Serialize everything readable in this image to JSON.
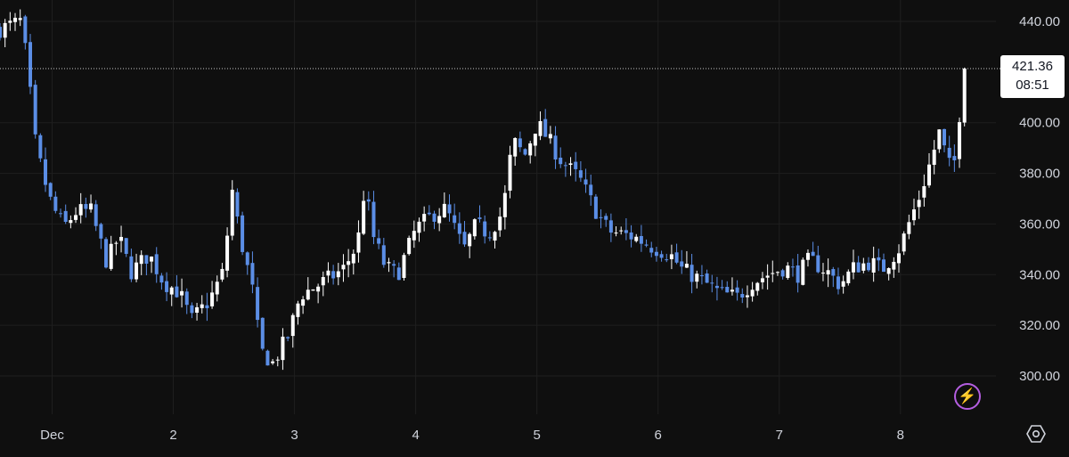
{
  "chart_data": {
    "type": "candlestick",
    "ylim": [
      285,
      445
    ],
    "y_ticks": [
      "440.00",
      "400.00",
      "380.00",
      "360.00",
      "340.00",
      "320.00",
      "300.00"
    ],
    "x_tick_labels": [
      "Dec",
      "2",
      "3",
      "4",
      "5",
      "6",
      "7",
      "8"
    ],
    "x_range_days": [
      0.57,
      8.7
    ],
    "colors": {
      "up": "#ffffff",
      "down": "#5b8ee6",
      "grid": "#1f1f1f",
      "crosshair": "#c8c8c8",
      "axis_text": "#d1d4dc"
    },
    "last_price": "421.36",
    "last_time": "08:51",
    "last_price_value": 421.36,
    "key_points": [
      [
        0.57,
        437
      ],
      [
        0.74,
        440
      ],
      [
        0.8,
        422
      ],
      [
        0.85,
        395
      ],
      [
        0.92,
        380
      ],
      [
        1.0,
        367
      ],
      [
        1.1,
        359
      ],
      [
        1.2,
        365
      ],
      [
        1.32,
        365
      ],
      [
        1.45,
        345
      ],
      [
        1.55,
        355
      ],
      [
        1.65,
        341
      ],
      [
        1.8,
        348
      ],
      [
        1.92,
        337
      ],
      [
        2.05,
        333
      ],
      [
        2.15,
        322
      ],
      [
        2.3,
        330
      ],
      [
        2.42,
        342
      ],
      [
        2.48,
        375
      ],
      [
        2.55,
        355
      ],
      [
        2.65,
        335
      ],
      [
        2.72,
        310
      ],
      [
        2.82,
        305
      ],
      [
        2.95,
        316
      ],
      [
        3.05,
        332
      ],
      [
        3.2,
        336
      ],
      [
        3.4,
        342
      ],
      [
        3.52,
        352
      ],
      [
        3.58,
        375
      ],
      [
        3.65,
        355
      ],
      [
        3.75,
        343
      ],
      [
        3.85,
        340
      ],
      [
        4.0,
        358
      ],
      [
        4.15,
        364
      ],
      [
        4.25,
        366
      ],
      [
        4.35,
        355
      ],
      [
        4.4,
        350
      ],
      [
        4.5,
        360
      ],
      [
        4.6,
        356
      ],
      [
        4.72,
        365
      ],
      [
        4.8,
        393
      ],
      [
        4.9,
        387
      ],
      [
        5.0,
        400
      ],
      [
        5.1,
        393
      ],
      [
        5.2,
        385
      ],
      [
        5.35,
        378
      ],
      [
        5.5,
        364
      ],
      [
        5.6,
        357
      ],
      [
        5.8,
        355
      ],
      [
        5.95,
        351
      ],
      [
        6.1,
        348
      ],
      [
        6.2,
        342
      ],
      [
        6.35,
        338
      ],
      [
        6.5,
        333
      ],
      [
        6.65,
        331
      ],
      [
        6.78,
        337
      ],
      [
        6.9,
        340
      ],
      [
        7.05,
        343
      ],
      [
        7.15,
        340
      ],
      [
        7.25,
        346
      ],
      [
        7.4,
        341
      ],
      [
        7.5,
        336
      ],
      [
        7.62,
        343
      ],
      [
        7.75,
        345
      ],
      [
        7.85,
        342
      ],
      [
        8.0,
        351
      ],
      [
        8.05,
        358
      ],
      [
        8.15,
        370
      ],
      [
        8.25,
        385
      ],
      [
        8.32,
        396
      ],
      [
        8.4,
        383
      ],
      [
        8.45,
        385
      ],
      [
        8.5,
        410
      ],
      [
        8.53,
        405
      ],
      [
        8.56,
        421.36
      ]
    ]
  }
}
